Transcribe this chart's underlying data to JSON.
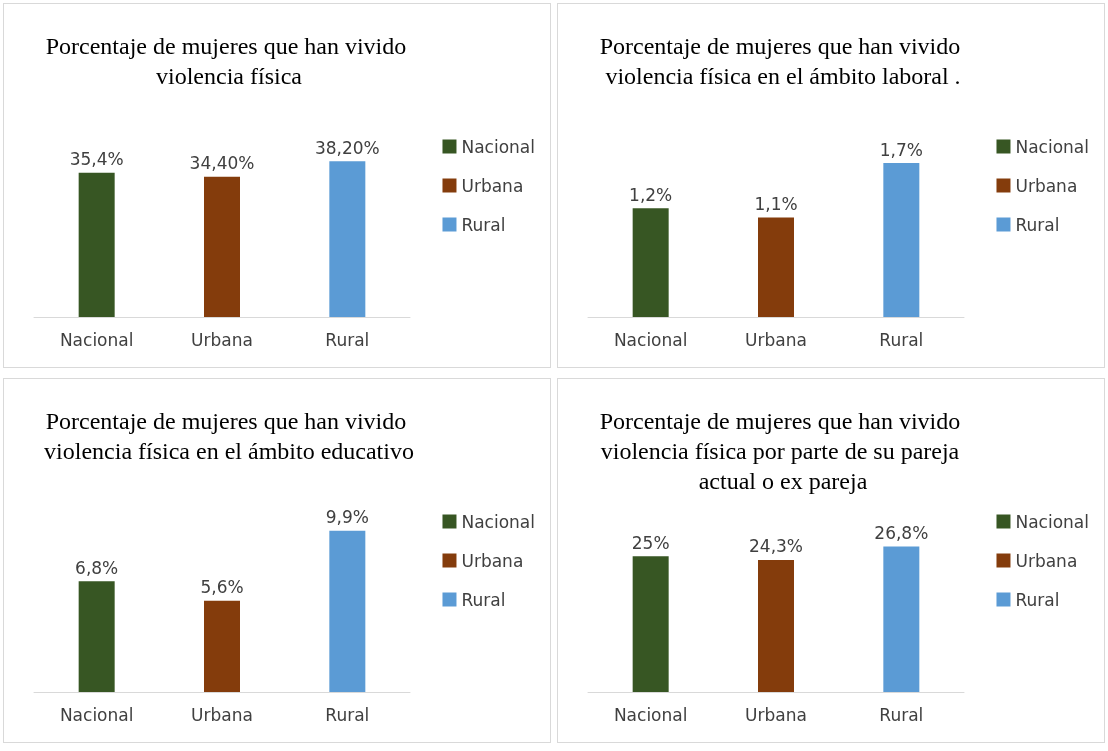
{
  "chart_data": [
    {
      "type": "bar",
      "title": "Porcentaje de mujeres que han vivido violencia física",
      "categories": [
        "Nacional",
        "Urbana",
        "Rural"
      ],
      "stacked": true,
      "data_labels": true,
      "legend": "right",
      "series": [
        {
          "name": "Nacional",
          "color": "#375623",
          "values": [
            35.4,
            null,
            null
          ],
          "value_labels": [
            "35,4%",
            null,
            null
          ]
        },
        {
          "name": "Urbana",
          "color": "#843c0c",
          "values": [
            null,
            34.4,
            null
          ],
          "value_labels": [
            null,
            "34,40%",
            null
          ]
        },
        {
          "name": "Rural",
          "color": "#5b9bd5",
          "values": [
            null,
            null,
            38.2
          ],
          "value_labels": [
            null,
            null,
            "38,20%"
          ]
        }
      ]
    },
    {
      "type": "bar",
      "title": "Porcentaje de mujeres que han vivido violencia física en el ámbito laboral .",
      "categories": [
        "Nacional",
        "Urbana",
        "Rural"
      ],
      "stacked": true,
      "data_labels": true,
      "legend": "right",
      "series": [
        {
          "name": "Nacional",
          "color": "#375623",
          "values": [
            1.2,
            null,
            null
          ],
          "value_labels": [
            "1,2%",
            null,
            null
          ]
        },
        {
          "name": "Urbana",
          "color": "#843c0c",
          "values": [
            null,
            1.1,
            null
          ],
          "value_labels": [
            null,
            "1,1%",
            null
          ]
        },
        {
          "name": "Rural",
          "color": "#5b9bd5",
          "values": [
            null,
            null,
            1.7
          ],
          "value_labels": [
            null,
            null,
            "1,7%"
          ]
        }
      ]
    },
    {
      "type": "bar",
      "title": "Porcentaje de mujeres que han vivido violencia física en el ámbito educativo",
      "categories": [
        "Nacional",
        "Urbana",
        "Rural"
      ],
      "stacked": true,
      "data_labels": true,
      "legend": "right",
      "series": [
        {
          "name": "Nacional",
          "color": "#375623",
          "values": [
            6.8,
            null,
            null
          ],
          "value_labels": [
            "6,8%",
            null,
            null
          ]
        },
        {
          "name": "Urbana",
          "color": "#843c0c",
          "values": [
            null,
            5.6,
            null
          ],
          "value_labels": [
            null,
            "5,6%",
            null
          ]
        },
        {
          "name": "Rural",
          "color": "#5b9bd5",
          "values": [
            null,
            null,
            9.9
          ],
          "value_labels": [
            null,
            null,
            "9,9%"
          ]
        }
      ]
    },
    {
      "type": "bar",
      "title": "Porcentaje de mujeres que han vivido violencia física por parte de su pareja actual o ex pareja",
      "categories": [
        "Nacional",
        "Urbana",
        "Rural"
      ],
      "stacked": true,
      "data_labels": true,
      "legend": "right",
      "series": [
        {
          "name": "Nacional",
          "color": "#375623",
          "values": [
            25,
            null,
            null
          ],
          "value_labels": [
            "25%",
            null,
            null
          ]
        },
        {
          "name": "Urbana",
          "color": "#843c0c",
          "values": [
            null,
            24.3,
            null
          ],
          "value_labels": [
            null,
            "24,3%",
            null
          ]
        },
        {
          "name": "Rural",
          "color": "#5b9bd5",
          "values": [
            null,
            null,
            26.8
          ],
          "value_labels": [
            null,
            null,
            "26,8%"
          ]
        }
      ]
    }
  ]
}
